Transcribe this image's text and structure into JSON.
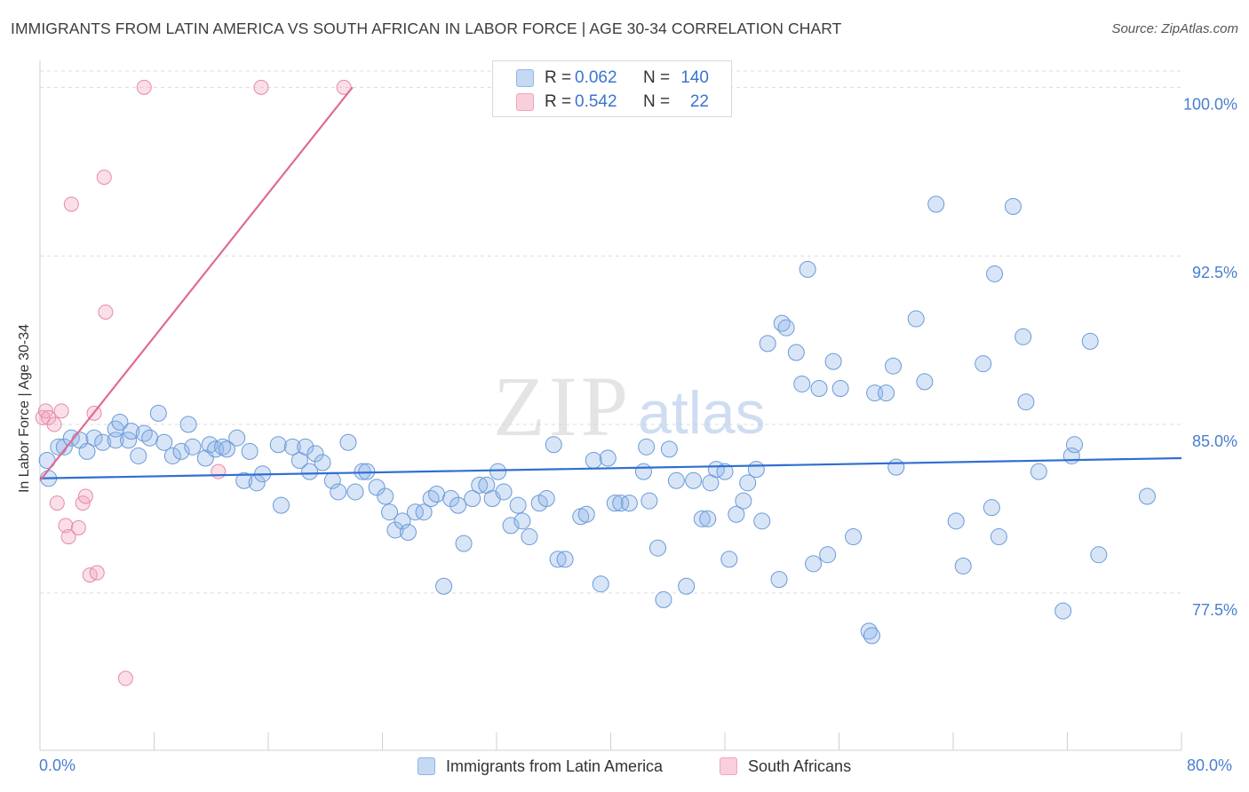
{
  "header": {
    "title": "IMMIGRANTS FROM LATIN AMERICA VS SOUTH AFRICAN IN LABOR FORCE | AGE 30-34 CORRELATION CHART",
    "source": "Source: ZipAtlas.com"
  },
  "watermark": {
    "zip": "ZIP",
    "atlas": "atlas"
  },
  "stats": {
    "rows": [
      {
        "r_label": "R =",
        "r_value": "0.062",
        "n_label": "N =",
        "n_value": "140",
        "color": "#8fb5e8"
      },
      {
        "r_label": "R =",
        "r_value": "0.542",
        "n_label": "N =",
        "n_value": "22",
        "color": "#f2a3bd"
      }
    ]
  },
  "legend": {
    "items": [
      {
        "label": "Immigrants from Latin America",
        "color": "#8fb5e8"
      },
      {
        "label": "South Africans",
        "color": "#f2a3bd"
      }
    ]
  },
  "colors": {
    "blue_fill": "rgba(143,181,232,0.35)",
    "blue_stroke": "#6a9ad8",
    "blue_line": "#2f6fcf",
    "pink_fill": "rgba(242,163,189,0.35)",
    "pink_stroke": "#e58aa9",
    "pink_line": "#e06a93",
    "tick_text": "#4a7ecf",
    "grid": "#dcdcdc"
  },
  "chart_data": {
    "type": "scatter",
    "title": "IMMIGRANTS FROM LATIN AMERICA VS SOUTH AFRICAN IN LABOR FORCE | AGE 30-34 CORRELATION CHART",
    "xlabel": "",
    "ylabel": "In Labor Force | Age 30-34",
    "xlim": [
      0,
      80
    ],
    "ylim": [
      70.5,
      101.2
    ],
    "x_tick_labels": [
      "0.0%",
      "80.0%"
    ],
    "y_ticks": [
      77.5,
      85.0,
      92.5,
      100.0
    ],
    "y_tick_labels": [
      "77.5%",
      "85.0%",
      "92.5%",
      "100.0%"
    ],
    "grid": "horizontal dashed",
    "legend_position": "bottom-center",
    "series": [
      {
        "name": "Immigrants from Latin America",
        "trend": {
          "x": [
            0,
            80
          ],
          "y": [
            82.6,
            83.5
          ]
        },
        "points": [
          [
            0.5,
            83.4
          ],
          [
            0.6,
            82.6
          ],
          [
            1.3,
            84.0
          ],
          [
            1.7,
            84.0
          ],
          [
            2.2,
            84.4
          ],
          [
            2.8,
            84.3
          ],
          [
            3.3,
            83.8
          ],
          [
            3.8,
            84.4
          ],
          [
            4.4,
            84.2
          ],
          [
            5.3,
            84.3
          ],
          [
            5.3,
            84.8
          ],
          [
            5.6,
            85.1
          ],
          [
            6.2,
            84.3
          ],
          [
            6.4,
            84.7
          ],
          [
            6.9,
            83.6
          ],
          [
            7.3,
            84.6
          ],
          [
            7.7,
            84.4
          ],
          [
            8.3,
            85.5
          ],
          [
            8.7,
            84.2
          ],
          [
            9.3,
            83.6
          ],
          [
            9.9,
            83.8
          ],
          [
            10.4,
            85.0
          ],
          [
            10.7,
            84.0
          ],
          [
            11.6,
            83.5
          ],
          [
            11.9,
            84.1
          ],
          [
            12.3,
            83.9
          ],
          [
            12.8,
            84.0
          ],
          [
            13.1,
            83.9
          ],
          [
            13.8,
            84.4
          ],
          [
            14.3,
            82.5
          ],
          [
            14.7,
            83.8
          ],
          [
            15.2,
            82.4
          ],
          [
            15.6,
            82.8
          ],
          [
            16.7,
            84.1
          ],
          [
            16.9,
            81.4
          ],
          [
            17.7,
            84.0
          ],
          [
            18.2,
            83.4
          ],
          [
            18.6,
            84.0
          ],
          [
            18.9,
            82.9
          ],
          [
            19.3,
            83.7
          ],
          [
            19.8,
            83.3
          ],
          [
            20.5,
            82.5
          ],
          [
            20.9,
            82.0
          ],
          [
            21.6,
            84.2
          ],
          [
            22.1,
            82.0
          ],
          [
            22.6,
            82.9
          ],
          [
            22.9,
            82.9
          ],
          [
            23.6,
            82.2
          ],
          [
            24.2,
            81.8
          ],
          [
            24.5,
            81.1
          ],
          [
            24.9,
            80.3
          ],
          [
            25.4,
            80.7
          ],
          [
            25.8,
            80.2
          ],
          [
            26.3,
            81.1
          ],
          [
            26.9,
            81.1
          ],
          [
            27.4,
            81.7
          ],
          [
            27.8,
            81.9
          ],
          [
            28.3,
            77.8
          ],
          [
            28.8,
            81.7
          ],
          [
            29.3,
            81.4
          ],
          [
            29.7,
            79.7
          ],
          [
            30.3,
            81.7
          ],
          [
            30.8,
            82.3
          ],
          [
            31.3,
            82.3
          ],
          [
            31.7,
            81.7
          ],
          [
            32.1,
            82.9
          ],
          [
            32.5,
            82.0
          ],
          [
            33.0,
            80.5
          ],
          [
            33.5,
            81.4
          ],
          [
            33.8,
            80.7
          ],
          [
            34.3,
            80.0
          ],
          [
            35.0,
            81.5
          ],
          [
            35.5,
            81.7
          ],
          [
            36.0,
            84.1
          ],
          [
            36.3,
            79.0
          ],
          [
            36.8,
            79.0
          ],
          [
            37.9,
            80.9
          ],
          [
            38.3,
            81.0
          ],
          [
            38.8,
            83.4
          ],
          [
            39.3,
            77.9
          ],
          [
            39.8,
            83.5
          ],
          [
            40.3,
            81.5
          ],
          [
            40.7,
            81.5
          ],
          [
            41.3,
            81.5
          ],
          [
            42.3,
            82.9
          ],
          [
            42.7,
            81.6
          ],
          [
            42.5,
            84.0
          ],
          [
            43.3,
            79.5
          ],
          [
            43.7,
            77.2
          ],
          [
            44.1,
            83.9
          ],
          [
            44.6,
            82.5
          ],
          [
            45.3,
            77.8
          ],
          [
            45.8,
            82.5
          ],
          [
            46.4,
            80.8
          ],
          [
            46.8,
            80.8
          ],
          [
            47.0,
            82.4
          ],
          [
            47.4,
            83.0
          ],
          [
            48.0,
            82.9
          ],
          [
            48.3,
            79.0
          ],
          [
            48.8,
            81.0
          ],
          [
            49.3,
            81.6
          ],
          [
            49.6,
            82.4
          ],
          [
            50.2,
            83.0
          ],
          [
            50.6,
            80.7
          ],
          [
            51.0,
            88.6
          ],
          [
            51.8,
            78.1
          ],
          [
            52.0,
            89.5
          ],
          [
            52.3,
            89.3
          ],
          [
            53.0,
            88.2
          ],
          [
            53.4,
            86.8
          ],
          [
            53.8,
            91.9
          ],
          [
            54.2,
            78.8
          ],
          [
            54.6,
            86.6
          ],
          [
            55.2,
            79.2
          ],
          [
            55.6,
            87.8
          ],
          [
            56.1,
            86.6
          ],
          [
            57.0,
            80.0
          ],
          [
            58.1,
            75.8
          ],
          [
            58.3,
            75.6
          ],
          [
            58.5,
            86.4
          ],
          [
            59.3,
            86.4
          ],
          [
            59.8,
            87.6
          ],
          [
            60.0,
            83.1
          ],
          [
            61.4,
            89.7
          ],
          [
            62.0,
            86.9
          ],
          [
            62.8,
            94.8
          ],
          [
            64.2,
            80.7
          ],
          [
            64.7,
            78.7
          ],
          [
            66.1,
            87.7
          ],
          [
            66.7,
            81.3
          ],
          [
            66.9,
            91.7
          ],
          [
            67.2,
            80.0
          ],
          [
            68.2,
            94.7
          ],
          [
            68.9,
            88.9
          ],
          [
            69.1,
            86.0
          ],
          [
            70.0,
            82.9
          ],
          [
            71.7,
            76.7
          ],
          [
            72.3,
            83.6
          ],
          [
            72.5,
            84.1
          ],
          [
            73.6,
            88.7
          ],
          [
            74.2,
            79.2
          ],
          [
            77.6,
            81.8
          ]
        ]
      },
      {
        "name": "South Africans",
        "trend": {
          "x": [
            0,
            21.9
          ],
          "y": [
            82.5,
            100.0
          ]
        },
        "points": [
          [
            0.2,
            85.3
          ],
          [
            0.4,
            85.6
          ],
          [
            0.6,
            85.3
          ],
          [
            1.0,
            85.0
          ],
          [
            1.2,
            81.5
          ],
          [
            1.5,
            85.6
          ],
          [
            1.8,
            80.5
          ],
          [
            2.0,
            80.0
          ],
          [
            2.2,
            94.8
          ],
          [
            2.7,
            80.4
          ],
          [
            3.0,
            81.5
          ],
          [
            3.2,
            81.8
          ],
          [
            3.5,
            78.3
          ],
          [
            3.8,
            85.5
          ],
          [
            4.0,
            78.4
          ],
          [
            4.5,
            96.0
          ],
          [
            4.6,
            90.0
          ],
          [
            6.0,
            73.7
          ],
          [
            7.3,
            100.0
          ],
          [
            12.5,
            82.9
          ],
          [
            15.5,
            100.0
          ],
          [
            21.3,
            100.0
          ]
        ]
      }
    ]
  }
}
